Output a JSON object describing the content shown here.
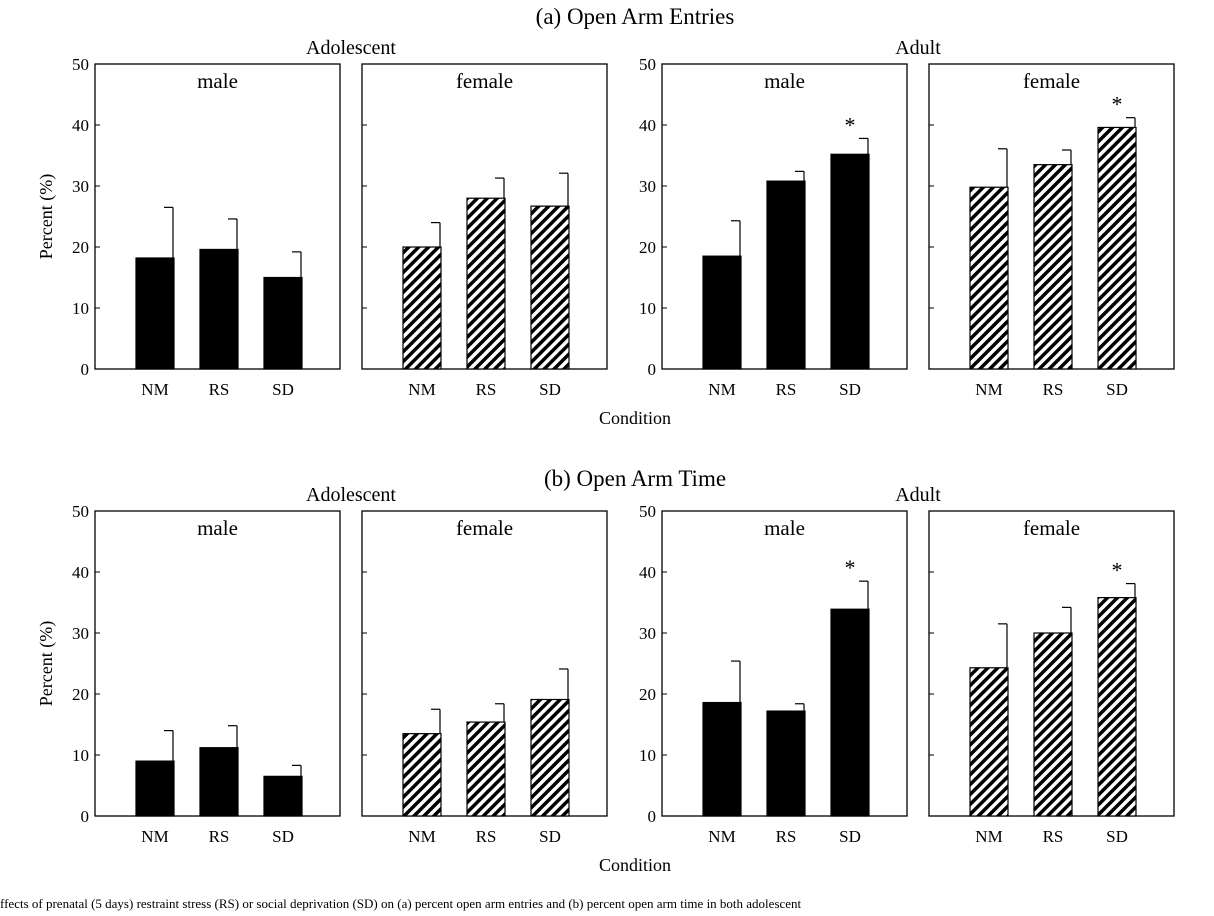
{
  "figure": {
    "caption": "ffects of prenatal (5 days) restraint stress (RS) or social deprivation (SD) on (a) percent open arm entries and (b) percent open arm time in both adolescent"
  },
  "chart_data": [
    {
      "type": "bar",
      "title": "(a) Open Arm Entries",
      "age": "Adolescent",
      "panel": "male",
      "categories": [
        "NM",
        "RS",
        "SD"
      ],
      "values": [
        18.2,
        19.6,
        15.0
      ],
      "errors": [
        8.3,
        5.0,
        4.2
      ],
      "significant": [
        false,
        false,
        false
      ],
      "fill": "solid",
      "ylabel": "Percent (%)",
      "xlabel": "Condition",
      "ylim": [
        0,
        50
      ],
      "yticks": [
        0,
        10,
        20,
        30,
        40,
        50
      ]
    },
    {
      "type": "bar",
      "title": "(a) Open Arm Entries",
      "age": "Adolescent",
      "panel": "female",
      "categories": [
        "NM",
        "RS",
        "SD"
      ],
      "values": [
        20.0,
        28.0,
        26.7
      ],
      "errors": [
        4.0,
        3.3,
        5.4
      ],
      "significant": [
        false,
        false,
        false
      ],
      "fill": "hatched",
      "ylim": [
        0,
        50
      ]
    },
    {
      "type": "bar",
      "title": "(a) Open Arm Entries",
      "age": "Adult",
      "panel": "male",
      "categories": [
        "NM",
        "RS",
        "SD"
      ],
      "values": [
        18.5,
        30.8,
        35.2
      ],
      "errors": [
        5.8,
        1.6,
        2.6
      ],
      "significant": [
        false,
        false,
        true
      ],
      "fill": "solid",
      "ylim": [
        0,
        50
      ],
      "yticks": [
        0,
        10,
        20,
        30,
        40,
        50
      ]
    },
    {
      "type": "bar",
      "title": "(a) Open Arm Entries",
      "age": "Adult",
      "panel": "female",
      "categories": [
        "NM",
        "RS",
        "SD"
      ],
      "values": [
        29.8,
        33.5,
        39.6
      ],
      "errors": [
        6.3,
        2.4,
        1.6
      ],
      "significant": [
        false,
        false,
        true
      ],
      "fill": "hatched",
      "ylim": [
        0,
        50
      ]
    },
    {
      "type": "bar",
      "title": "(b) Open Arm Time",
      "age": "Adolescent",
      "panel": "male",
      "categories": [
        "NM",
        "RS",
        "SD"
      ],
      "values": [
        9.0,
        11.2,
        6.5
      ],
      "errors": [
        5.0,
        3.6,
        1.8
      ],
      "significant": [
        false,
        false,
        false
      ],
      "fill": "solid",
      "ylabel": "Percent (%)",
      "xlabel": "Condition",
      "ylim": [
        0,
        50
      ],
      "yticks": [
        0,
        10,
        20,
        30,
        40,
        50
      ]
    },
    {
      "type": "bar",
      "title": "(b) Open Arm Time",
      "age": "Adolescent",
      "panel": "female",
      "categories": [
        "NM",
        "RS",
        "SD"
      ],
      "values": [
        13.5,
        15.4,
        19.1
      ],
      "errors": [
        4.0,
        3.0,
        5.0
      ],
      "significant": [
        false,
        false,
        false
      ],
      "fill": "hatched",
      "ylim": [
        0,
        50
      ]
    },
    {
      "type": "bar",
      "title": "(b) Open Arm Time",
      "age": "Adult",
      "panel": "male",
      "categories": [
        "NM",
        "RS",
        "SD"
      ],
      "values": [
        18.6,
        17.2,
        33.9
      ],
      "errors": [
        6.8,
        1.2,
        4.6
      ],
      "significant": [
        false,
        false,
        true
      ],
      "fill": "solid",
      "ylim": [
        0,
        50
      ],
      "yticks": [
        0,
        10,
        20,
        30,
        40,
        50
      ]
    },
    {
      "type": "bar",
      "title": "(b) Open Arm Time",
      "age": "Adult",
      "panel": "female",
      "categories": [
        "NM",
        "RS",
        "SD"
      ],
      "values": [
        24.3,
        30.0,
        35.8
      ],
      "errors": [
        7.2,
        4.2,
        2.3
      ],
      "significant": [
        false,
        false,
        true
      ],
      "fill": "hatched",
      "ylim": [
        0,
        50
      ]
    }
  ]
}
